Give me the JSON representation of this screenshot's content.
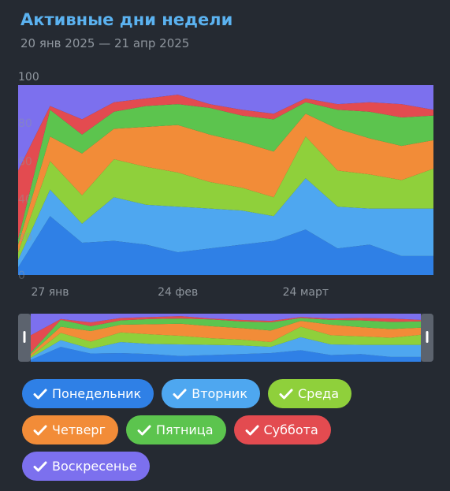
{
  "header": {
    "title": "Активные дни недели",
    "subtitle": "20 янв 2025 — 21 апр 2025"
  },
  "chart_data": {
    "type": "area",
    "stacked": true,
    "percentage": true,
    "title": "Активные дни недели",
    "subtitle": "20 янв 2025 — 21 апр 2025",
    "x": [
      "2025-01-20",
      "2025-01-27",
      "2025-02-03",
      "2025-02-10",
      "2025-02-17",
      "2025-02-24",
      "2025-03-03",
      "2025-03-10",
      "2025-03-17",
      "2025-03-24",
      "2025-03-31",
      "2025-04-07",
      "2025-04-14",
      "2025-04-21"
    ],
    "x_tick_labels": [
      {
        "x": "2025-01-27",
        "label": "27 янв"
      },
      {
        "x": "2025-02-24",
        "label": "24 фев"
      },
      {
        "x": "2025-03-24",
        "label": "24 март"
      }
    ],
    "y_ticks": [
      0,
      20,
      40,
      60,
      80,
      100
    ],
    "ylim": [
      0,
      100
    ],
    "grid": false,
    "legend_position": "bottom",
    "series": [
      {
        "name": "Понедельник",
        "color": "#2f80e6",
        "values": [
          4,
          31,
          17,
          18,
          16,
          12,
          14,
          16,
          18,
          24,
          14,
          16,
          10,
          10
        ]
      },
      {
        "name": "Вторник",
        "color": "#4ea7f0",
        "values": [
          4,
          14,
          10,
          23,
          21,
          24,
          21,
          18,
          13,
          27,
          22,
          19,
          25,
          25
        ]
      },
      {
        "name": "Среда",
        "color": "#8fd03b",
        "values": [
          4,
          15,
          15,
          20,
          20,
          18,
          14,
          12,
          10,
          22,
          19,
          18,
          15,
          21
        ]
      },
      {
        "name": "Четверг",
        "color": "#f28c38",
        "values": [
          4,
          13,
          22,
          16,
          21,
          25,
          25,
          24,
          24,
          12,
          22,
          19,
          18,
          15
        ]
      },
      {
        "name": "Пятница",
        "color": "#5cc44e",
        "values": [
          3,
          14,
          10,
          9,
          11,
          11,
          14,
          14,
          17,
          6,
          10,
          14,
          15,
          13
        ]
      },
      {
        "name": "Суббота",
        "color": "#e34b50",
        "values": [
          36,
          2,
          8,
          5,
          4,
          5,
          2,
          3,
          3,
          2,
          3,
          5,
          7,
          3
        ]
      },
      {
        "name": "Воскресенье",
        "color": "#7c70ee",
        "values": [
          45,
          11,
          18,
          9,
          7,
          5,
          10,
          13,
          15,
          7,
          10,
          9,
          10,
          13
        ]
      }
    ]
  },
  "range_selector": {
    "start": "2025-01-20",
    "end": "2025-04-21"
  }
}
